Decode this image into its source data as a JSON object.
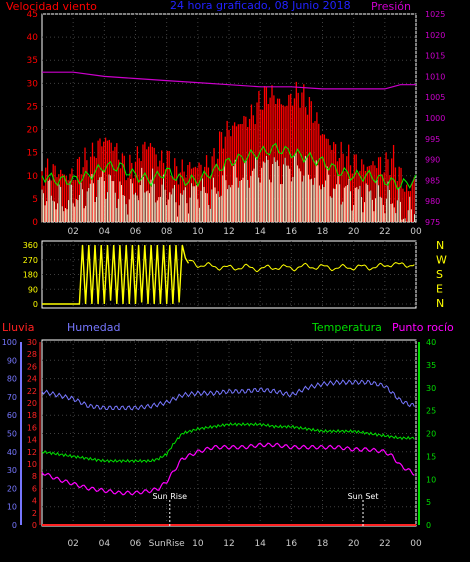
{
  "chart_data": [
    {
      "type": "line",
      "title": "24 hora graficado, 08 Junio 2018",
      "left_axis_label": "Velocidad viento",
      "right_axis_label": "Presión",
      "colors": {
        "title": "#2222ff",
        "left_label": "#ff0000",
        "right_label": "#cc00cc",
        "left_ticks": "#ff0000",
        "right_ticks": "#cc00cc"
      },
      "y_left": {
        "min": 0,
        "max": 45,
        "ticks": [
          "0",
          "5",
          "10",
          "15",
          "20",
          "25",
          "30",
          "35",
          "40",
          "45"
        ]
      },
      "y_right": {
        "min": 975,
        "max": 1025,
        "ticks": [
          "975",
          "980",
          "985",
          "990",
          "995",
          "1000",
          "1005",
          "1010",
          "1015",
          "1020",
          "1025"
        ]
      },
      "x_ticks": [
        "02",
        "04",
        "06",
        "08",
        "10",
        "12",
        "14",
        "16",
        "18",
        "20",
        "22",
        "00"
      ],
      "series": [
        {
          "key": "gust",
          "color": "#ff0000",
          "axis": "left",
          "x": [
            0,
            0.5,
            1,
            1.5,
            2,
            2.5,
            3,
            3.5,
            4,
            4.5,
            5,
            5.5,
            6,
            6.5,
            7,
            7.5,
            8,
            8.5,
            9,
            9.5,
            10,
            10.5,
            11,
            11.5,
            12,
            12.5,
            13,
            13.5,
            14,
            14.5,
            15,
            15.5,
            16,
            16.5,
            17,
            17.5,
            18,
            18.5,
            19,
            19.5,
            20,
            20.5,
            21,
            21.5,
            22,
            22.5,
            23,
            23.5,
            24
          ],
          "values": [
            11,
            11,
            11,
            10,
            10,
            13,
            13,
            16,
            18,
            17,
            14,
            11,
            13,
            16,
            17,
            13,
            14,
            11,
            11,
            12,
            12,
            12,
            13,
            18,
            20,
            21,
            22,
            23,
            26,
            28,
            27,
            25,
            27,
            28,
            26,
            23,
            19,
            17,
            15,
            14,
            13,
            12,
            12,
            13,
            12,
            14,
            10,
            6,
            11
          ]
        },
        {
          "key": "speed",
          "color": "#00ee00",
          "axis": "left",
          "x": [
            0,
            1,
            2,
            3,
            4,
            5,
            6,
            7,
            8,
            9,
            10,
            11,
            12,
            13,
            14,
            15,
            16,
            17,
            18,
            19,
            20,
            21,
            22,
            23,
            24
          ],
          "values": [
            10,
            9,
            9,
            10,
            12,
            12,
            10,
            9,
            11,
            9,
            9,
            11,
            13,
            14,
            15,
            16,
            15,
            14,
            13,
            11,
            10,
            10,
            9,
            8,
            9
          ]
        },
        {
          "key": "average",
          "color": "#eeffdd",
          "axis": "left",
          "x": [
            0,
            0.5,
            1,
            1.5,
            2,
            2.5,
            3,
            3.5,
            4,
            4.5,
            5,
            5.5,
            6,
            6.5,
            7,
            7.5,
            8,
            8.5,
            9,
            9.5,
            10,
            10.5,
            11,
            11.5,
            12,
            12.5,
            13,
            13.5,
            14,
            14.5,
            15,
            15.5,
            16,
            16.5,
            17,
            17.5,
            18,
            18.5,
            19,
            19.5,
            20,
            20.5,
            21,
            21.5,
            22,
            22.5,
            23,
            23.5,
            24
          ],
          "values": [
            7,
            6,
            5,
            4,
            6,
            5,
            7,
            8,
            9,
            8,
            6,
            5,
            7,
            8,
            8,
            6,
            7,
            5,
            5,
            6,
            7,
            6,
            6,
            8,
            9,
            10,
            10,
            11,
            12,
            12,
            12,
            11,
            12,
            12,
            11,
            10,
            9,
            8,
            7,
            7,
            6,
            6,
            6,
            6,
            5,
            5,
            3,
            1,
            4
          ]
        },
        {
          "key": "pressure",
          "color": "#cc00cc",
          "axis": "right",
          "x": [
            0,
            2,
            4,
            6,
            8,
            10,
            12,
            14,
            16,
            18,
            20,
            22,
            23,
            24
          ],
          "values": [
            1011,
            1011,
            1010,
            1009.5,
            1009,
            1008.5,
            1008,
            1007.5,
            1007.5,
            1007,
            1007,
            1007,
            1008,
            1008
          ]
        }
      ]
    },
    {
      "type": "scatter",
      "left_ticks": [
        "0",
        "90",
        "180",
        "270",
        "360"
      ],
      "right_ticks": [
        "N",
        "W",
        "S",
        "E",
        "N"
      ],
      "y_min": 0,
      "y_max": 360,
      "x_ticks": [
        "02",
        "04",
        "06",
        "08",
        "10",
        "12",
        "14",
        "16",
        "18",
        "20",
        "22",
        "00"
      ],
      "series": [
        {
          "key": "direction",
          "color": "#ffff00",
          "x": [
            0,
            1.5,
            2.4,
            2.6,
            2.8,
            3.0,
            3.2,
            3.4,
            3.6,
            3.8,
            4.0,
            4.2,
            4.4,
            4.6,
            4.8,
            5.0,
            5.2,
            5.4,
            5.6,
            5.8,
            6.0,
            6.2,
            6.4,
            6.6,
            6.8,
            7.0,
            7.2,
            7.4,
            7.6,
            7.8,
            8.0,
            8.2,
            8.4,
            8.6,
            8.8,
            9.0,
            9.2,
            9.4,
            10,
            11,
            12,
            13,
            14,
            15,
            16,
            17,
            18,
            19,
            20,
            21,
            22,
            22.5,
            23,
            23.5,
            24
          ],
          "values": [
            0,
            0,
            0,
            360,
            0,
            360,
            0,
            360,
            0,
            360,
            0,
            360,
            20,
            360,
            0,
            360,
            0,
            360,
            0,
            360,
            0,
            360,
            10,
            360,
            0,
            360,
            0,
            360,
            0,
            360,
            0,
            360,
            0,
            360,
            10,
            360,
            280,
            260,
            240,
            230,
            220,
            225,
            215,
            225,
            220,
            230,
            225,
            220,
            225,
            225,
            230,
            250,
            235,
            240,
            245
          ]
        }
      ]
    },
    {
      "type": "line",
      "top_labels": [
        "Lluvia",
        "Humedad",
        "Temperatura",
        "Punto rocío"
      ],
      "colors": {
        "rain": "#ff2222",
        "humidity": "#7777ff",
        "temperature": "#00dd00",
        "dew": "#ff00ff"
      },
      "humidity_axis": {
        "min": 0,
        "max": 100,
        "ticks": [
          "0",
          "10",
          "20",
          "30",
          "40",
          "50",
          "60",
          "70",
          "80",
          "90",
          "100"
        ]
      },
      "rain_axis": {
        "min": 0,
        "max": 30,
        "ticks": [
          "0",
          "2",
          "4",
          "6",
          "8",
          "10",
          "12",
          "14",
          "16",
          "18",
          "20",
          "22",
          "24",
          "26",
          "28",
          "30"
        ]
      },
      "temperature_axis": {
        "min": 0,
        "max": 40,
        "ticks": [
          "0",
          "5",
          "10",
          "15",
          "20",
          "25",
          "30",
          "35",
          "40"
        ]
      },
      "x_ticks": [
        "02",
        "04",
        "06",
        "SunRise",
        "10",
        "12",
        "14",
        "16",
        "18",
        "20",
        "22",
        "00"
      ],
      "annotations": [
        {
          "text": "Sun Rise",
          "x": 8.2
        },
        {
          "text": "Sun Set",
          "x": 20.6
        }
      ],
      "series": [
        {
          "key": "humidity",
          "axis": "humidity",
          "color": "#7777ff",
          "x": [
            0,
            0.5,
            1,
            2,
            3,
            4,
            5,
            6,
            7,
            8,
            8.5,
            9,
            10,
            11,
            12,
            13,
            14,
            15,
            16,
            17,
            18,
            19,
            20,
            21,
            22,
            22.5,
            23,
            23.5,
            24
          ],
          "values": [
            73,
            72,
            71,
            69,
            65,
            64,
            64,
            64,
            65,
            67,
            69,
            71,
            72,
            72,
            73,
            73,
            74,
            73,
            71,
            75,
            77,
            78,
            78,
            78,
            76,
            72,
            68,
            66,
            65
          ]
        },
        {
          "key": "temperature",
          "axis": "temperature",
          "color": "#00dd00",
          "x": [
            0,
            1,
            2,
            3,
            4,
            5,
            6,
            7,
            7.5,
            8,
            8.5,
            9,
            10,
            11,
            12,
            13,
            14,
            15,
            16,
            17,
            18,
            19,
            20,
            21,
            22,
            23,
            24
          ],
          "values": [
            16,
            15.5,
            15,
            14.5,
            14,
            14,
            14,
            14,
            14.5,
            15.5,
            18,
            20,
            21,
            21.5,
            22,
            22,
            22,
            21.5,
            21.5,
            21,
            20.5,
            20.5,
            20.5,
            20,
            19.5,
            19,
            19
          ]
        },
        {
          "key": "dew_point",
          "axis": "temperature",
          "color": "#ff00ff",
          "x": [
            0,
            1,
            2,
            3,
            4,
            5,
            6,
            7,
            7.5,
            8,
            8.5,
            9,
            10,
            11,
            12,
            13,
            14,
            15,
            16,
            17,
            18,
            19,
            20,
            21,
            22,
            22.5,
            23,
            23.5,
            24
          ],
          "values": [
            11.5,
            10,
            9,
            8,
            7.5,
            7,
            7,
            7.5,
            8,
            9.5,
            12,
            14.5,
            16,
            17,
            17,
            17,
            17.5,
            17.5,
            17,
            17,
            17,
            17,
            16.5,
            16.5,
            16,
            15,
            13,
            12,
            11
          ]
        },
        {
          "key": "rain",
          "axis": "rain",
          "color": "#ff2222",
          "x": [
            0,
            24
          ],
          "values": [
            0,
            0
          ]
        }
      ]
    }
  ]
}
